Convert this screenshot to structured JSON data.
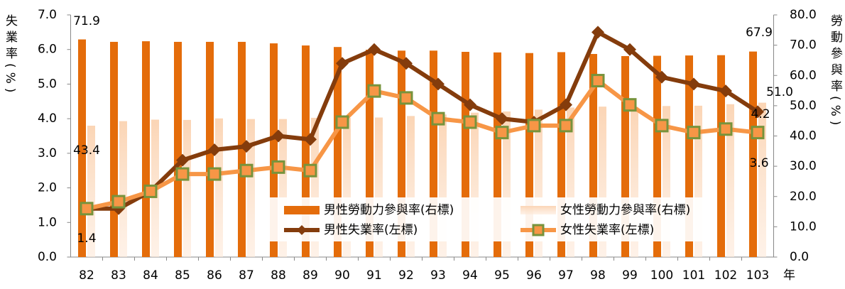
{
  "chart_data": {
    "type": "bar-line",
    "y_label": "失業率(%)",
    "y2_label": "勞動參與率(%)",
    "xlabel": "年",
    "categories": [
      "82",
      "83",
      "84",
      "85",
      "86",
      "87",
      "88",
      "89",
      "90",
      "91",
      "92",
      "93",
      "94",
      "95",
      "96",
      "97",
      "98",
      "99",
      "100",
      "101",
      "102",
      "103"
    ],
    "series": [
      {
        "name": "男性勞動力參與率(右標)",
        "type": "bar",
        "axis": "y2",
        "color": "#e46c0a",
        "values": [
          71.9,
          71.1,
          71.3,
          71.1,
          71.1,
          71.1,
          70.6,
          69.9,
          69.4,
          68.5,
          68.2,
          68.2,
          67.8,
          67.6,
          67.4,
          67.7,
          67.1,
          66.4,
          66.5,
          66.6,
          66.7,
          67.9
        ],
        "value_labels": [
          "71.9",
          null,
          null,
          null,
          null,
          null,
          null,
          null,
          null,
          null,
          null,
          null,
          null,
          null,
          null,
          null,
          null,
          null,
          null,
          null,
          null,
          "67.9"
        ]
      },
      {
        "name": "女性勞動力參與率(右標)",
        "type": "bar",
        "axis": "y2",
        "color": "#fbc9a3",
        "values": [
          43.4,
          44.9,
          45.4,
          45.3,
          45.8,
          45.6,
          45.6,
          46.0,
          46.0,
          46.1,
          46.6,
          47.1,
          47.7,
          48.1,
          48.7,
          49.4,
          49.7,
          49.6,
          49.9,
          50.0,
          50.5,
          51.0
        ],
        "value_labels": [
          "43.4",
          null,
          null,
          null,
          null,
          null,
          null,
          null,
          null,
          null,
          null,
          null,
          null,
          null,
          null,
          null,
          null,
          null,
          null,
          null,
          null,
          "51.0"
        ]
      },
      {
        "name": "男性失業率(左標)",
        "type": "line",
        "color": "#843c0c",
        "marker": "diamond",
        "values": [
          1.4,
          1.4,
          1.9,
          2.8,
          3.1,
          3.2,
          3.5,
          3.4,
          5.6,
          6.0,
          5.6,
          5.0,
          4.4,
          4.0,
          3.9,
          4.4,
          6.5,
          6.0,
          5.2,
          5.0,
          4.8,
          4.2
        ],
        "value_labels": [
          "1.4",
          null,
          null,
          null,
          null,
          null,
          null,
          null,
          null,
          null,
          null,
          null,
          null,
          null,
          null,
          null,
          null,
          null,
          null,
          null,
          null,
          "4.2"
        ]
      },
      {
        "name": "女性失業率(左標)",
        "type": "line",
        "color": "#f79646",
        "marker": "square",
        "marker_edge": "#77933c",
        "values": [
          1.4,
          1.6,
          1.9,
          2.4,
          2.4,
          2.5,
          2.6,
          2.5,
          3.9,
          4.8,
          4.6,
          4.0,
          3.9,
          3.6,
          3.8,
          3.8,
          5.1,
          4.4,
          3.8,
          3.6,
          3.7,
          3.6
        ],
        "value_labels": [
          null,
          null,
          null,
          null,
          null,
          null,
          null,
          null,
          null,
          null,
          null,
          null,
          null,
          null,
          null,
          null,
          null,
          null,
          null,
          null,
          null,
          "3.6"
        ]
      }
    ],
    "ylim": [
      0,
      7
    ],
    "yticks": [
      {
        "value": 0,
        "label": "0.0"
      },
      {
        "value": 1,
        "label": "1.0"
      },
      {
        "value": 2,
        "label": "2.0"
      },
      {
        "value": 3,
        "label": "3.0"
      },
      {
        "value": 4,
        "label": "4.0"
      },
      {
        "value": 5,
        "label": "5.0"
      },
      {
        "value": 6,
        "label": "6.0"
      },
      {
        "value": 7,
        "label": "7.0"
      }
    ],
    "y2lim": [
      0,
      80
    ],
    "y2ticks": [
      {
        "value": 0,
        "label": "0.0"
      },
      {
        "value": 10,
        "label": "10.0"
      },
      {
        "value": 20,
        "label": "20.0"
      },
      {
        "value": 30,
        "label": "30.0"
      },
      {
        "value": 40,
        "label": "40.0"
      },
      {
        "value": 50,
        "label": "50.0"
      },
      {
        "value": 60,
        "label": "60.0"
      },
      {
        "value": 70,
        "label": "70.0"
      },
      {
        "value": 80,
        "label": "80.0"
      }
    ],
    "legend": "lower right"
  }
}
